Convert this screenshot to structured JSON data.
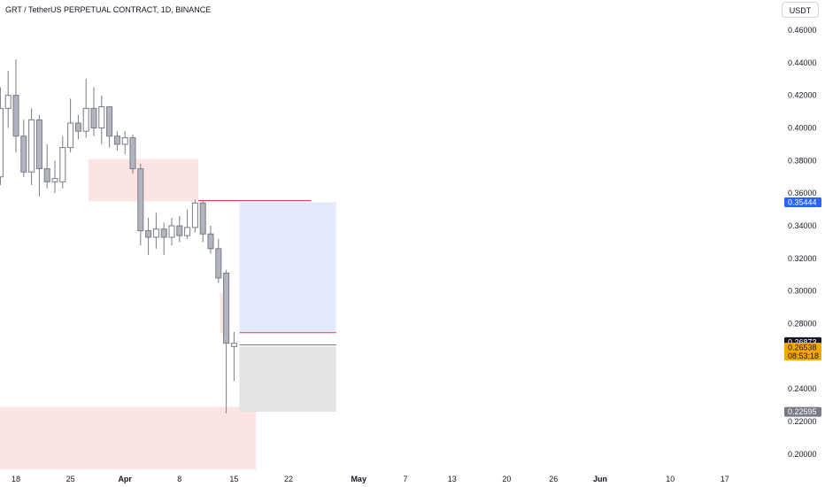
{
  "header": {
    "title": "GRT / TetherUS PERPETUAL CONTRACT, 1D, BINANCE",
    "unit": "USDT"
  },
  "colors": {
    "candle_fill": "#b2b5be",
    "candle_edge": "#787b86",
    "zone_red": "#fde4e4",
    "zone_blue": "#e3eafd",
    "zone_grey": "#e3e3e5",
    "tag_blue": "#2962ff",
    "tag_black": "#131722",
    "tag_orange": "#f7a600",
    "tag_grey": "#787b86",
    "line_red": "#f23645"
  },
  "chart_data": {
    "type": "candlestick",
    "y_axis": {
      "ticks": [
        "0.46000",
        "0.44000",
        "0.42000",
        "0.40000",
        "0.38000",
        "0.36000",
        "0.34000",
        "0.32000",
        "0.30000",
        "0.28000",
        "0.26000",
        "0.24000",
        "0.22000",
        "0.20000"
      ],
      "range": [
        0.19,
        0.47
      ]
    },
    "x_axis": {
      "ticks": [
        {
          "label": "18",
          "day": 0
        },
        {
          "label": "25",
          "day": 7
        },
        {
          "label": "Apr",
          "day": 14,
          "bold": true
        },
        {
          "label": "8",
          "day": 21
        },
        {
          "label": "15",
          "day": 28
        },
        {
          "label": "22",
          "day": 35
        },
        {
          "label": "May",
          "day": 44,
          "bold": true
        },
        {
          "label": "7",
          "day": 50
        },
        {
          "label": "13",
          "day": 56
        },
        {
          "label": "20",
          "day": 63
        },
        {
          "label": "26",
          "day": 69
        },
        {
          "label": "Jun",
          "day": 75,
          "bold": true
        },
        {
          "label": "10",
          "day": 84
        },
        {
          "label": "17",
          "day": 91
        }
      ]
    },
    "candles": [
      {
        "o": 0.37,
        "h": 0.425,
        "l": 0.365,
        "c": 0.412
      },
      {
        "o": 0.412,
        "h": 0.435,
        "l": 0.4,
        "c": 0.42
      },
      {
        "o": 0.42,
        "h": 0.442,
        "l": 0.385,
        "c": 0.395
      },
      {
        "o": 0.395,
        "h": 0.405,
        "l": 0.37,
        "c": 0.373
      },
      {
        "o": 0.373,
        "h": 0.412,
        "l": 0.365,
        "c": 0.405
      },
      {
        "o": 0.405,
        "h": 0.408,
        "l": 0.358,
        "c": 0.375
      },
      {
        "o": 0.375,
        "h": 0.39,
        "l": 0.363,
        "c": 0.367
      },
      {
        "o": 0.367,
        "h": 0.38,
        "l": 0.36,
        "c": 0.369
      },
      {
        "o": 0.367,
        "h": 0.395,
        "l": 0.363,
        "c": 0.388
      },
      {
        "o": 0.388,
        "h": 0.418,
        "l": 0.385,
        "c": 0.403
      },
      {
        "o": 0.403,
        "h": 0.408,
        "l": 0.393,
        "c": 0.398
      },
      {
        "o": 0.398,
        "h": 0.43,
        "l": 0.394,
        "c": 0.412
      },
      {
        "o": 0.412,
        "h": 0.425,
        "l": 0.395,
        "c": 0.4
      },
      {
        "o": 0.4,
        "h": 0.42,
        "l": 0.39,
        "c": 0.413
      },
      {
        "o": 0.413,
        "h": 0.413,
        "l": 0.388,
        "c": 0.395
      },
      {
        "o": 0.395,
        "h": 0.398,
        "l": 0.386,
        "c": 0.39
      },
      {
        "o": 0.39,
        "h": 0.398,
        "l": 0.384,
        "c": 0.394
      },
      {
        "o": 0.394,
        "h": 0.396,
        "l": 0.372,
        "c": 0.375
      },
      {
        "o": 0.375,
        "h": 0.378,
        "l": 0.328,
        "c": 0.337
      },
      {
        "o": 0.337,
        "h": 0.345,
        "l": 0.322,
        "c": 0.333
      },
      {
        "o": 0.333,
        "h": 0.348,
        "l": 0.326,
        "c": 0.338
      },
      {
        "o": 0.338,
        "h": 0.342,
        "l": 0.322,
        "c": 0.333
      },
      {
        "o": 0.333,
        "h": 0.345,
        "l": 0.328,
        "c": 0.34
      },
      {
        "o": 0.34,
        "h": 0.346,
        "l": 0.33,
        "c": 0.334
      },
      {
        "o": 0.334,
        "h": 0.35,
        "l": 0.332,
        "c": 0.339
      },
      {
        "o": 0.339,
        "h": 0.356,
        "l": 0.336,
        "c": 0.354
      },
      {
        "o": 0.354,
        "h": 0.356,
        "l": 0.33,
        "c": 0.335
      },
      {
        "o": 0.335,
        "h": 0.34,
        "l": 0.323,
        "c": 0.326
      },
      {
        "o": 0.326,
        "h": 0.332,
        "l": 0.305,
        "c": 0.308
      },
      {
        "o": 0.311,
        "h": 0.313,
        "l": 0.225,
        "c": 0.268
      },
      {
        "o": 0.266,
        "h": 0.275,
        "l": 0.245,
        "c": 0.268
      }
    ],
    "zones": [
      {
        "color": "red",
        "day_start": 9.3,
        "day_end": 23.4,
        "top": 0.381,
        "bottom": 0.355
      },
      {
        "color": "red",
        "day_start": 26.2,
        "day_end": 26.6,
        "top": 0.299,
        "bottom": 0.274
      },
      {
        "color": "red",
        "day_start": -3,
        "day_end": 30.8,
        "top": 0.229,
        "bottom": 0.19
      },
      {
        "color": "blue",
        "day_start": 28.7,
        "day_end": 41.1,
        "top": 0.3544,
        "bottom": 0.2745
      },
      {
        "color": "grey",
        "day_start": 28.7,
        "day_end": 41.1,
        "top": 0.266,
        "bottom": 0.226
      }
    ],
    "lines": [
      {
        "color": "red",
        "day_start": 23.4,
        "day_end": 37.9,
        "value": 0.3555
      },
      {
        "color": "red",
        "day_start": 28.7,
        "day_end": 41.1,
        "value": 0.2745
      },
      {
        "color": "grey",
        "day_start": 28.7,
        "day_end": 41.1,
        "value": 0.267
      }
    ],
    "price_tags": [
      {
        "label": "0.35444",
        "value": 0.3544,
        "color": "blue"
      },
      {
        "label": "0.26873",
        "value": 0.26873,
        "color": "black"
      },
      {
        "label": "0.26538",
        "sublabel": "08:53:18",
        "value": 0.26538,
        "color": "orange"
      },
      {
        "label": "0.22595",
        "value": 0.22595,
        "color": "grey"
      }
    ]
  }
}
